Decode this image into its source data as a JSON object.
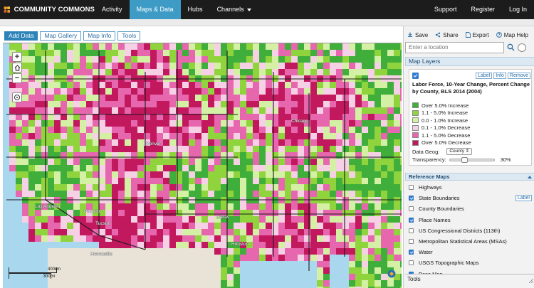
{
  "brand": {
    "name": "COMMUNITY COMMONS",
    "logo_icon": "puzzle-logo-icon"
  },
  "nav": {
    "items": [
      {
        "label": "Activity"
      },
      {
        "label": "Maps & Data",
        "active": true
      },
      {
        "label": "Hubs"
      },
      {
        "label": "Channels",
        "dropdown": true
      }
    ],
    "right": [
      {
        "label": "Support"
      },
      {
        "label": "Register"
      },
      {
        "label": "Log In"
      }
    ],
    "active_color": "#3d9bc6"
  },
  "map_tabs": [
    {
      "label": "Add Data",
      "active": true
    },
    {
      "label": "Map Gallery"
    },
    {
      "label": "Map Info"
    },
    {
      "label": "Tools"
    }
  ],
  "actions": [
    {
      "label": "Save",
      "icon": "save-icon"
    },
    {
      "label": "Share",
      "icon": "share-icon"
    },
    {
      "label": "Export",
      "icon": "export-icon"
    },
    {
      "label": "Map Help",
      "icon": "help-icon"
    }
  ],
  "search": {
    "placeholder": "Enter a location"
  },
  "map_layers": {
    "header": "Map Layers",
    "buttons": [
      "Label",
      "Info",
      "Remove"
    ],
    "title": "Labor Force, 10-Year Change, Percent Change by County, BLS 2014 (2004)",
    "legend": [
      {
        "label": "Over 5.0% Increase",
        "color": "#3fae3a"
      },
      {
        "label": "1.1 - 5.0% Increase",
        "color": "#8fd43c"
      },
      {
        "label": "0.0 - 1.0% Increase",
        "color": "#d4f0a5"
      },
      {
        "label": "0.1 - 1.0% Decrease",
        "color": "#f6d1e6"
      },
      {
        "label": "1.1 - 5.0% Decrease",
        "color": "#e667ae"
      },
      {
        "label": "Over 5.0% Decrease",
        "color": "#c2185e"
      }
    ],
    "data_geog_label": "Data Geog:",
    "data_geog_value": "County",
    "transparency_label": "Transparency:",
    "transparency_value": "30%",
    "transparency_fraction": 0.3
  },
  "reference_maps": {
    "header": "Reference Maps",
    "label_button": "Label",
    "items": [
      {
        "label": "Highways",
        "checked": false
      },
      {
        "label": "State Boundaries",
        "checked": true,
        "label_button": true
      },
      {
        "label": "County Boundaries",
        "checked": false
      },
      {
        "label": "Place Names",
        "checked": true
      },
      {
        "label": "US Congressional Districts (113th)",
        "checked": false
      },
      {
        "label": "Metropolitan Statistical Areas (MSAs)",
        "checked": false
      },
      {
        "label": "Water",
        "checked": true
      },
      {
        "label": "USGS Topographic Maps",
        "checked": false
      },
      {
        "label": "Base Map",
        "checked": true
      }
    ]
  },
  "tools_footer": "Tools",
  "map": {
    "place_labels": [
      "Los Angeles",
      "Phoenix",
      "Tucson",
      "Dallas",
      "Houston",
      "Denver",
      "Chicago",
      "Hermosillo"
    ],
    "scale_km": "400km",
    "scale_mi": "300mi"
  }
}
